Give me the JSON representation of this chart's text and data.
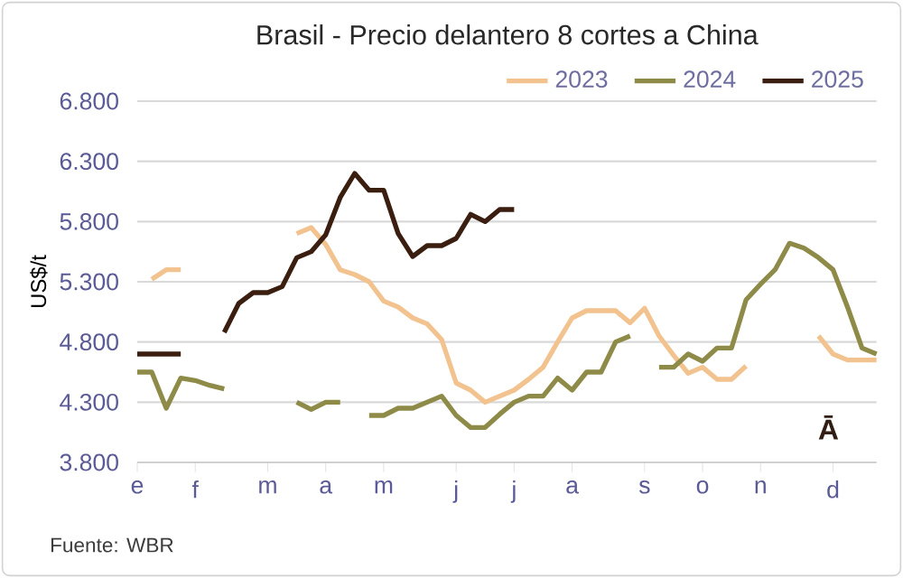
{
  "chart_data": {
    "type": "line",
    "title": "Brasil - Precio delantero 8 cortes a China",
    "ylabel": "US$/t",
    "categories": [
      "e",
      null,
      null,
      null,
      "f",
      null,
      null,
      null,
      null,
      "m",
      null,
      null,
      null,
      "a",
      null,
      null,
      null,
      "m",
      null,
      null,
      null,
      null,
      "j",
      null,
      null,
      null,
      "j",
      null,
      null,
      null,
      "a",
      null,
      null,
      null,
      null,
      "s",
      null,
      null,
      null,
      "o",
      null,
      null,
      null,
      "n",
      null,
      null,
      null,
      null,
      "d",
      null,
      null,
      null
    ],
    "ylim": [
      3800,
      6800
    ],
    "yticks": [
      {
        "value": 3800,
        "label": "3.800"
      },
      {
        "value": 4300,
        "label": "4.300"
      },
      {
        "value": 4800,
        "label": "4.800"
      },
      {
        "value": 5300,
        "label": "5.300"
      },
      {
        "value": 5800,
        "label": "5.800"
      },
      {
        "value": 6300,
        "label": "6.300"
      },
      {
        "value": 6800,
        "label": "6.800"
      }
    ],
    "series": [
      {
        "name": "2023",
        "color": "#f2c28f",
        "values": [
          null,
          5320,
          5400,
          5400,
          null,
          null,
          null,
          null,
          null,
          null,
          null,
          5700,
          5750,
          5610,
          5400,
          5360,
          5300,
          5140,
          5090,
          5000,
          4950,
          4820,
          4460,
          4400,
          4300,
          4350,
          4400,
          4490,
          4590,
          4800,
          5000,
          5060,
          5060,
          5060,
          4960,
          5080,
          4850,
          4690,
          4540,
          4590,
          4490,
          4490,
          4600,
          null,
          null,
          null,
          null,
          4850,
          4700,
          4650,
          4650,
          4650
        ]
      },
      {
        "name": "2024",
        "color": "#8e8a48",
        "values": [
          4550,
          4550,
          4250,
          4500,
          4480,
          4440,
          4410,
          null,
          null,
          null,
          null,
          4300,
          4240,
          4300,
          4300,
          null,
          4190,
          4190,
          4250,
          4250,
          4300,
          4350,
          4190,
          4090,
          4090,
          4200,
          4300,
          4350,
          4350,
          4500,
          4400,
          4550,
          4550,
          4800,
          4850,
          null,
          4590,
          4590,
          4700,
          4640,
          4750,
          4750,
          5150,
          5280,
          5400,
          5620,
          5580,
          5500,
          5400,
          5090,
          4750,
          4700
        ]
      },
      {
        "name": "2025",
        "color": "#3a1e10",
        "values": [
          4700,
          4700,
          4700,
          4700,
          null,
          null,
          4880,
          5120,
          5210,
          5210,
          5260,
          5500,
          5550,
          5690,
          6000,
          6200,
          6060,
          6060,
          5700,
          5510,
          5600,
          5600,
          5660,
          5860,
          5800,
          5900,
          5900,
          null,
          null,
          null,
          null,
          null,
          null,
          null,
          null,
          null,
          null,
          null,
          null,
          null,
          null,
          null,
          null,
          null,
          null,
          null,
          null,
          null,
          null,
          null,
          null,
          null
        ]
      }
    ],
    "grid": "y",
    "legend": "top right",
    "marker": "none",
    "line_style": "solid",
    "annotations": [
      "Fuente: WBR",
      "Ā"
    ]
  }
}
